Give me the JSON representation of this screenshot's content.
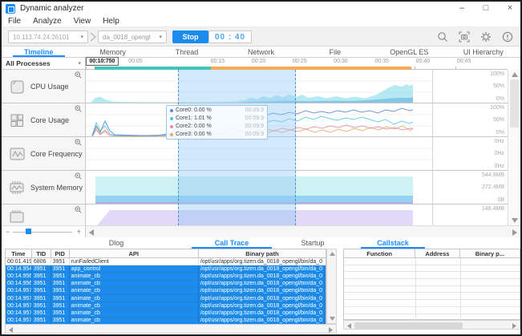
{
  "window": {
    "title": "Dynamic analyzer",
    "controls": {
      "minimize": "–",
      "maximize": "□",
      "close": "×"
    }
  },
  "menubar": {
    "items": [
      "File",
      "Analyze",
      "View",
      "Help"
    ]
  },
  "toolbar": {
    "device_address": "10.113.74.24:26101",
    "app_name": "da_0018_opengl",
    "stop_label": "Stop",
    "timer": "00 : 40",
    "accent_color": "#1b8ced"
  },
  "tabs": {
    "items": [
      "Timeline",
      "Memory",
      "Thread",
      "Network",
      "File",
      "OpenGL ES",
      "UI Hierarchy"
    ],
    "active": "Timeline"
  },
  "timeline": {
    "process_filter": "All Processes",
    "ruler": {
      "ticks": [
        "00",
        "00:05",
        "",
        "00:15",
        "00:20",
        "00:25",
        "00:30",
        "00:35",
        "00:40",
        "00:45"
      ],
      "marker_label": "00:10:750",
      "loading_bar_color": "#3ec6bb",
      "recording_bar_color": "#f7ab56"
    },
    "rows": [
      {
        "label": "CPU Usage",
        "axis": [
          "100%",
          "50%",
          "0%"
        ]
      },
      {
        "label": "Core Usage",
        "axis": [
          "100%",
          "50%",
          "0%"
        ]
      },
      {
        "label": "Core Frequency",
        "axis": [
          "0Hz",
          "0Hz",
          "0Hz"
        ]
      },
      {
        "label": "System Memory",
        "axis": [
          "544.9MB",
          "272.4MB",
          "0B"
        ]
      },
      {
        "label": "",
        "axis": [
          "146.4MB",
          "",
          ""
        ]
      }
    ],
    "tooltip": {
      "entries": [
        {
          "name": "Core0:",
          "value": "0.00 %",
          "time": "00:09.9",
          "color": "#5b8dd6"
        },
        {
          "name": "Core1:",
          "value": "1.01 %",
          "time": "00:09.9",
          "color": "#52c5dc"
        },
        {
          "name": "Core2:",
          "value": "0.00 %",
          "time": "00:09.9",
          "color": "#e08bb2"
        },
        {
          "name": "Core3:",
          "value": "0.00 %",
          "time": "00:09.9",
          "color": "#e8a862"
        }
      ]
    },
    "zoom_slider": {
      "minus": "−",
      "plus": "+"
    }
  },
  "bottom": {
    "left_tabs": {
      "items": [
        "Dlog",
        "Call Trace",
        "Startup"
      ],
      "active": "Call Trace"
    },
    "call_trace": {
      "headers": [
        "Time",
        "TID",
        "PID",
        "API",
        "Binary path"
      ],
      "selected_from_index": 1,
      "rows": [
        [
          "00:01.419",
          "6806",
          "3951",
          "runFailedClient",
          "/opt/usr/apps/org.tizen.da_0018_opengl/bin/da_0"
        ],
        [
          "00:14.954",
          "3951",
          "3951",
          "app_control",
          "/opt/usr/apps/org.tizen.da_0018_opengl/bin/da_0"
        ],
        [
          "00:14.956",
          "3951",
          "3951",
          "animate_cb",
          "/opt/usr/apps/org.tizen.da_0018_opengl/bin/da_0"
        ],
        [
          "00:14.956",
          "3951",
          "3951",
          "animate_cb",
          "/opt/usr/apps/org.tizen.da_0018_opengl/bin/da_0"
        ],
        [
          "00:14.957",
          "3951",
          "3951",
          "animate_cb",
          "/opt/usr/apps/org.tizen.da_0018_opengl/bin/da_0"
        ],
        [
          "00:14.957",
          "3951",
          "3951",
          "animate_cb",
          "/opt/usr/apps/org.tizen.da_0018_opengl/bin/da_0"
        ],
        [
          "00:14.957",
          "3951",
          "3951",
          "animate_cb",
          "/opt/usr/apps/org.tizen.da_0018_opengl/bin/da_0"
        ],
        [
          "00:14.957",
          "3951",
          "3951",
          "animate_cb",
          "/opt/usr/apps/org.tizen.da_0018_opengl/bin/da_0"
        ],
        [
          "00:14.957",
          "3951",
          "3951",
          "animate_cb",
          "/opt/usr/apps/org.tizen.da_0018_opengl/bin/da_0"
        ],
        [
          "00:14.957",
          "3951",
          "3951",
          "animate_cb",
          "/opt/usr/apps/org.tizen.da_0018_opengl/bin/da_0"
        ]
      ]
    },
    "callstack": {
      "tab_label": "Callstack",
      "headers": [
        "Function",
        "Address",
        "Binary p..."
      ],
      "rows": []
    }
  }
}
